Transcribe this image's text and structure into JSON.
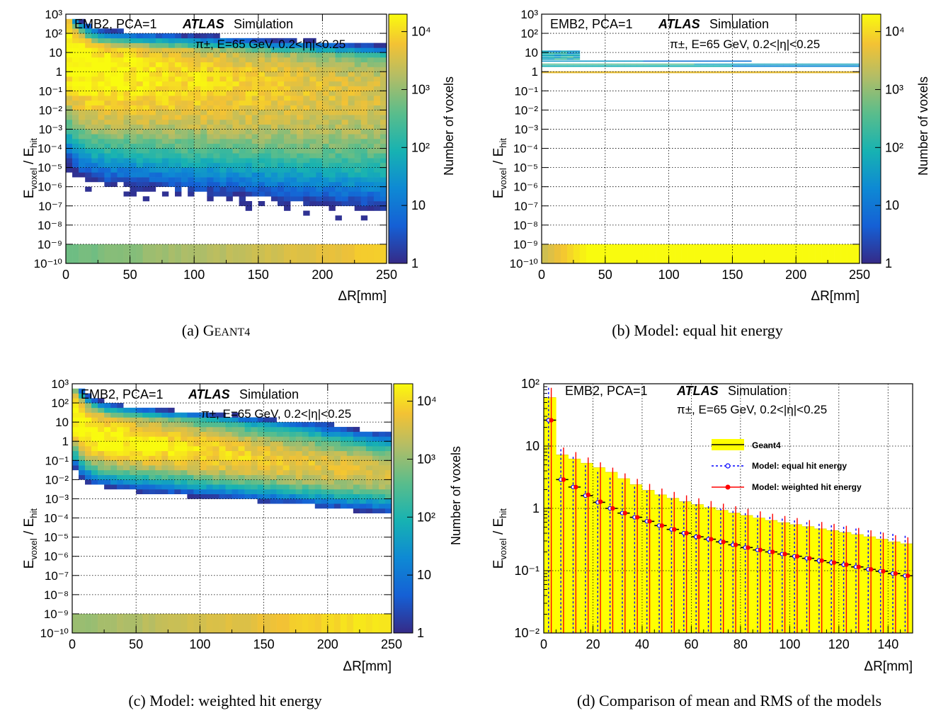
{
  "figure": {
    "ylabel_main": "E",
    "ylabel_sub1": "voxel",
    "ylabel_sep": " / E",
    "ylabel_sub2": "hit",
    "xlabel": "ΔR[mm]",
    "colorbar_label": "Number of voxels",
    "colorbar_ticks": [
      "1",
      "10",
      "10²",
      "10³",
      "10⁴"
    ],
    "region_label": "EMB2, PCA=1",
    "atlas_label": "ATLAS",
    "simulation_label": "Simulation",
    "particle_label": "π±, E=65 GeV, 0.2<|η|<0.25"
  },
  "panels": [
    {
      "id": "a",
      "caption_prefix": "(a) ",
      "caption_g": "G",
      "caption_rest": "EANT4"
    },
    {
      "id": "b",
      "caption": "(b) Model:  equal hit energy"
    },
    {
      "id": "c",
      "caption": "(c) Model:  weighted hit energy"
    },
    {
      "id": "d",
      "caption": "(d) Comparison of mean and RMS of the models"
    }
  ],
  "chart_data": [
    {
      "panel": "a",
      "type": "heatmap",
      "title": "",
      "xlabel": "ΔR[mm]",
      "ylabel": "Evoxel / Ehit",
      "xlim": [
        0,
        250
      ],
      "ylim_log10": [
        -10,
        3
      ],
      "x_ticks": [
        0,
        50,
        100,
        150,
        200,
        250
      ],
      "y_ticks": [
        "10⁻¹⁰",
        "10⁻⁹",
        "10⁻⁸",
        "10⁻⁷",
        "10⁻⁶",
        "10⁻⁵",
        "10⁻⁴",
        "10⁻³",
        "10⁻²",
        "10⁻¹",
        "1",
        "10",
        "10²",
        "10³"
      ],
      "zlabel": "Number of voxels",
      "z_scale": "log",
      "zlim": [
        1,
        20000
      ]
    },
    {
      "panel": "b",
      "type": "heatmap",
      "title": "",
      "xlabel": "ΔR[mm]",
      "ylabel": "Evoxel / Ehit",
      "xlim": [
        0,
        250
      ],
      "ylim_log10": [
        -10,
        3
      ],
      "x_ticks": [
        0,
        50,
        100,
        150,
        200,
        250
      ],
      "y_ticks": [
        "10⁻¹⁰",
        "10⁻⁹",
        "10⁻⁸",
        "10⁻⁷",
        "10⁻⁶",
        "10⁻⁵",
        "10⁻⁴",
        "10⁻³",
        "10⁻²",
        "10⁻¹",
        "1",
        "10",
        "10²",
        "10³"
      ],
      "zlabel": "Number of voxels",
      "z_scale": "log",
      "zlim": [
        1,
        20000
      ]
    },
    {
      "panel": "c",
      "type": "heatmap",
      "title": "",
      "xlabel": "ΔR[mm]",
      "ylabel": "Evoxel / Ehit",
      "xlim": [
        0,
        250
      ],
      "ylim_log10": [
        -10,
        3
      ],
      "x_ticks": [
        0,
        50,
        100,
        150,
        200,
        250
      ],
      "y_ticks": [
        "10⁻¹⁰",
        "10⁻⁹",
        "10⁻⁸",
        "10⁻⁷",
        "10⁻⁶",
        "10⁻⁵",
        "10⁻⁴",
        "10⁻³",
        "10⁻²",
        "10⁻¹",
        "1",
        "10",
        "10²",
        "10³"
      ],
      "zlabel": "Number of voxels",
      "z_scale": "log",
      "zlim": [
        1,
        20000
      ]
    },
    {
      "panel": "d",
      "type": "bar",
      "title": "",
      "xlabel": "ΔR[mm]",
      "ylabel": "Evoxel / Ehit",
      "xlim": [
        0,
        150
      ],
      "ylim": [
        0.01,
        100
      ],
      "y_scale": "log",
      "x_ticks": [
        0,
        20,
        40,
        60,
        80,
        100,
        120,
        140
      ],
      "y_ticks": [
        "10⁻²",
        "10⁻¹",
        "1",
        "10",
        "10²"
      ],
      "legend_position": "right",
      "x": [
        2.5,
        7.5,
        12.5,
        17.5,
        22.5,
        27.5,
        32.5,
        37.5,
        42.5,
        47.5,
        52.5,
        57.5,
        62.5,
        67.5,
        72.5,
        77.5,
        82.5,
        87.5,
        92.5,
        97.5,
        102.5,
        107.5,
        112.5,
        117.5,
        122.5,
        127.5,
        132.5,
        137.5,
        142.5,
        147.5
      ],
      "series": [
        {
          "name": "Geant4",
          "color": "#ffff00",
          "kind": "rms-band",
          "values": [
            60,
            7.2,
            6.2,
            5.3,
            4.5,
            3.8,
            3.0,
            2.4,
            1.95,
            1.65,
            1.45,
            1.28,
            1.15,
            1.03,
            0.93,
            0.84,
            0.77,
            0.7,
            0.64,
            0.59,
            0.55,
            0.51,
            0.47,
            0.44,
            0.41,
            0.38,
            0.35,
            0.32,
            0.29,
            0.27
          ]
        },
        {
          "name": "Model: equal hit energy",
          "color": "#0000ff",
          "kind": "mean-with-rms",
          "values": [
            26,
            2.9,
            2.2,
            1.6,
            1.25,
            1.0,
            0.84,
            0.72,
            0.62,
            0.53,
            0.46,
            0.4,
            0.35,
            0.32,
            0.29,
            0.26,
            0.235,
            0.215,
            0.2,
            0.185,
            0.17,
            0.158,
            0.145,
            0.135,
            0.125,
            0.115,
            0.105,
            0.098,
            0.09,
            0.083
          ],
          "rms": [
            60,
            6.0,
            4.5,
            3.3,
            2.6,
            2.1,
            1.75,
            1.5,
            1.3,
            1.15,
            1.0,
            0.9,
            0.82,
            0.76,
            0.7,
            0.65,
            0.6,
            0.56,
            0.53,
            0.5,
            0.47,
            0.44,
            0.42,
            0.4,
            0.38,
            0.36,
            0.34,
            0.32,
            0.3,
            0.28
          ]
        },
        {
          "name": "Model: weighted hit energy",
          "color": "#ff0000",
          "kind": "mean-with-rms",
          "values": [
            26,
            2.9,
            2.2,
            1.65,
            1.28,
            1.0,
            0.84,
            0.72,
            0.62,
            0.53,
            0.46,
            0.4,
            0.35,
            0.32,
            0.29,
            0.26,
            0.235,
            0.215,
            0.2,
            0.185,
            0.17,
            0.158,
            0.145,
            0.135,
            0.125,
            0.115,
            0.105,
            0.098,
            0.09,
            0.083
          ],
          "rms": [
            60,
            6.6,
            5.8,
            4.9,
            4.2,
            3.5,
            2.8,
            2.25,
            1.85,
            1.55,
            1.38,
            1.22,
            1.1,
            0.99,
            0.9,
            0.82,
            0.75,
            0.68,
            0.62,
            0.57,
            0.53,
            0.49,
            0.46,
            0.43,
            0.4,
            0.37,
            0.34,
            0.31,
            0.28,
            0.26
          ]
        }
      ]
    }
  ]
}
